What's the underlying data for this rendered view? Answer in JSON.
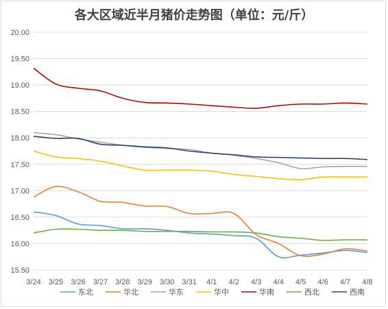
{
  "chart_data": {
    "type": "line",
    "title": "各大区域近半月猪价走势图（单位：元/斤）",
    "xlabel": "",
    "ylabel": "",
    "ylim": [
      15.5,
      20.0
    ],
    "yticks": [
      "20.00",
      "19.50",
      "19.00",
      "18.50",
      "18.00",
      "17.50",
      "17.00",
      "16.50",
      "16.00",
      "15.50"
    ],
    "categories": [
      "3/24",
      "3/25",
      "3/26",
      "3/27",
      "3/28",
      "3/29",
      "3/30",
      "3/31",
      "4/1",
      "4/2",
      "4/3",
      "4/4",
      "4/5",
      "4/6",
      "4/7",
      "4/8"
    ],
    "grid": "horizontal",
    "legend": "bottom",
    "series": [
      {
        "name": "东北",
        "color": "#5b9bd5",
        "values": [
          16.6,
          16.53,
          16.37,
          16.34,
          16.28,
          16.28,
          16.25,
          16.2,
          16.18,
          16.15,
          16.1,
          15.75,
          15.78,
          15.82,
          15.87,
          15.83
        ]
      },
      {
        "name": "华北",
        "color": "#ed7d31",
        "values": [
          16.88,
          17.08,
          16.98,
          16.8,
          16.78,
          16.71,
          16.7,
          16.57,
          16.57,
          16.57,
          16.17,
          16.0,
          15.77,
          15.8,
          15.9,
          15.86
        ]
      },
      {
        "name": "华东",
        "color": "#a5a5a5",
        "values": [
          18.1,
          18.06,
          17.98,
          17.92,
          17.86,
          17.82,
          17.8,
          17.78,
          17.71,
          17.67,
          17.61,
          17.53,
          17.42,
          17.45,
          17.46,
          17.46
        ]
      },
      {
        "name": "华中",
        "color": "#ffc000",
        "values": [
          17.75,
          17.64,
          17.61,
          17.56,
          17.47,
          17.39,
          17.39,
          17.39,
          17.37,
          17.31,
          17.27,
          17.23,
          17.21,
          17.26,
          17.26,
          17.26
        ]
      },
      {
        "name": "华南",
        "color": "#c00000",
        "values": [
          19.32,
          19.02,
          18.94,
          18.89,
          18.75,
          18.67,
          18.66,
          18.64,
          18.61,
          18.58,
          18.56,
          18.61,
          18.64,
          18.64,
          18.66,
          18.64
        ]
      },
      {
        "name": "西北",
        "color": "#70ad47",
        "values": [
          16.2,
          16.27,
          16.27,
          16.25,
          16.25,
          16.23,
          16.23,
          16.23,
          16.22,
          16.22,
          16.2,
          16.13,
          16.1,
          16.06,
          16.07,
          16.07
        ]
      },
      {
        "name": "西南",
        "color": "#264478",
        "values": [
          18.03,
          17.99,
          17.99,
          17.88,
          17.86,
          17.83,
          17.81,
          17.75,
          17.71,
          17.68,
          17.64,
          17.63,
          17.62,
          17.61,
          17.61,
          17.59
        ]
      }
    ]
  }
}
